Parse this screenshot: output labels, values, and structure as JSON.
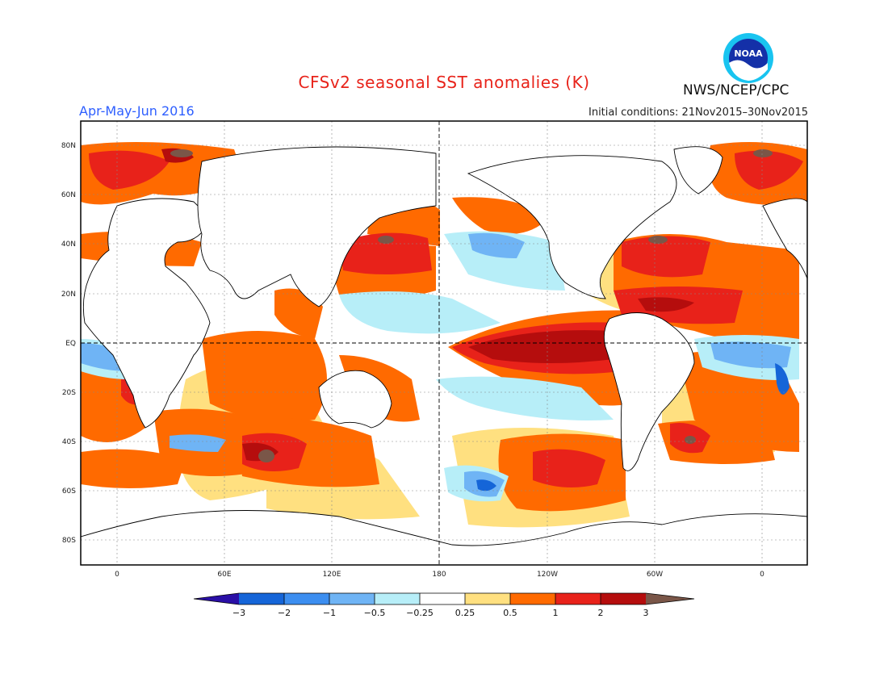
{
  "title": "CFSv2 seasonal SST anomalies (K)",
  "season": "Apr-May-Jun 2016",
  "agency": "NWS/NCEP/CPC",
  "initial_conditions": "Initial conditions: 21Nov2015–30Nov2015",
  "logo_text": "NOAA",
  "map": {
    "projection": "cylindrical equidistant",
    "lon_range": [
      -20,
      380
    ],
    "lat_range": [
      -90,
      90
    ],
    "y_tick_labels": [
      "80N",
      "60N",
      "40N",
      "20N",
      "EQ",
      "20S",
      "40S",
      "60S",
      "80S"
    ],
    "x_tick_labels": [
      "0",
      "60E",
      "120E",
      "180",
      "120W",
      "60W",
      "0"
    ],
    "reference_lines": [
      "EQ",
      "180"
    ]
  },
  "colorbar": {
    "labels": [
      "−3",
      "−2",
      "−1",
      "−0.5",
      "−0.25",
      "0.25",
      "0.5",
      "1",
      "2",
      "3"
    ],
    "colors": [
      "#2a0fa6",
      "#1565d8",
      "#3c8ef0",
      "#6fb4f5",
      "#b7eef8",
      "#ffffff",
      "#ffe080",
      "#ff6a00",
      "#e8221a",
      "#b50d0d",
      "#7a5648"
    ]
  }
}
